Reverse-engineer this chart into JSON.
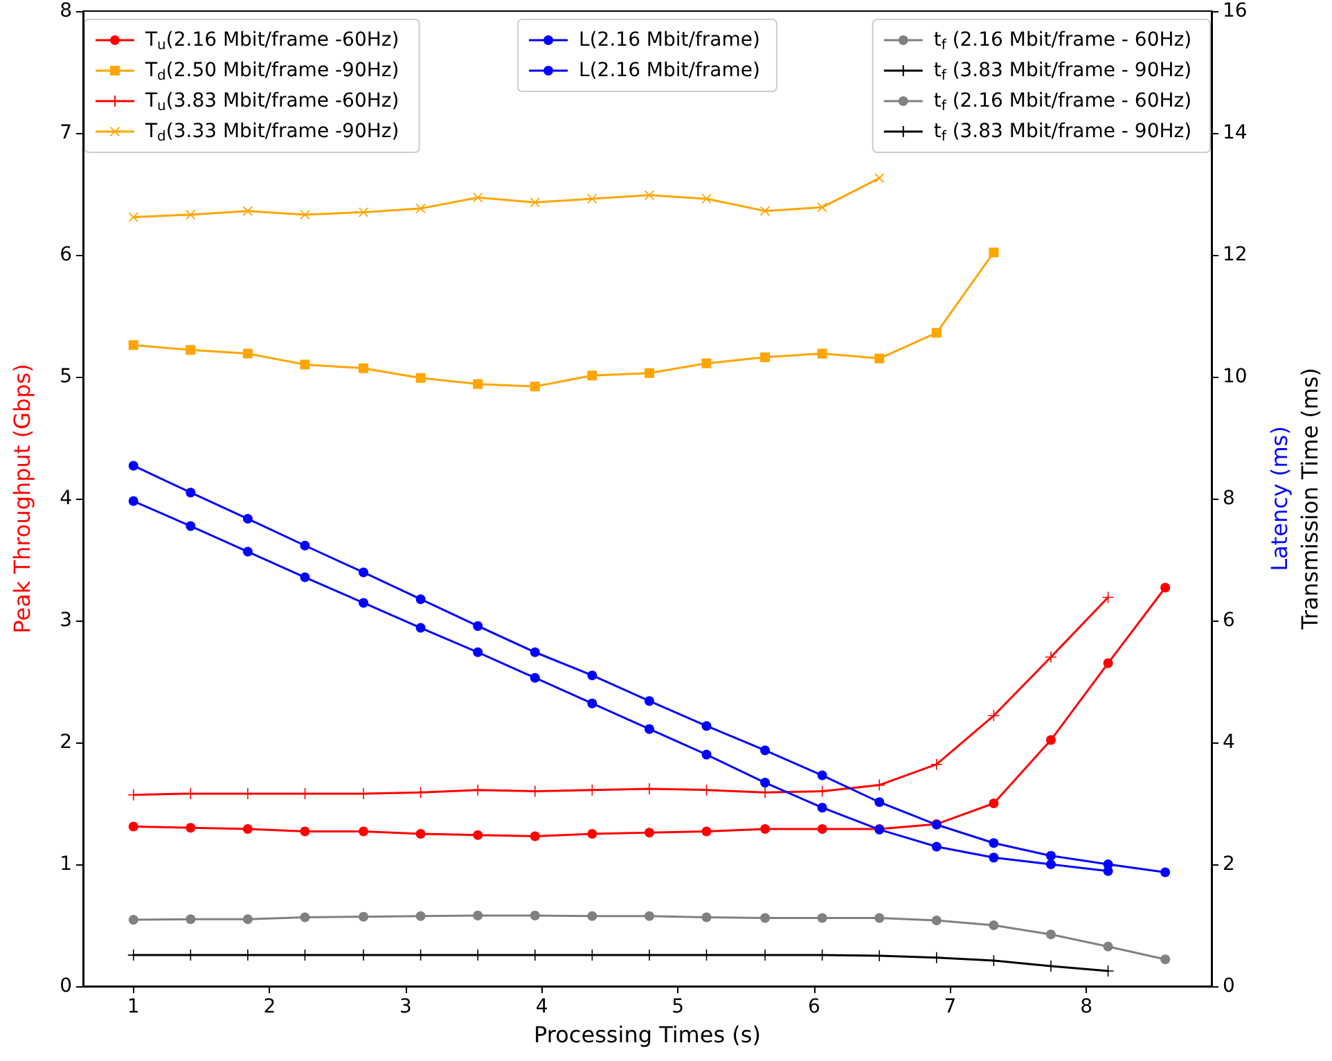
{
  "chart_data": {
    "type": "line",
    "xlabel": "Processing Times (s)",
    "ylabel": "Peak Throughput (Gbps)",
    "y2label": "Latency (ms)\nTransmission Time (ms)",
    "x": [
      1,
      1.42,
      1.84,
      2.26,
      2.69,
      3.11,
      3.53,
      3.95,
      4.37,
      4.79,
      5.21,
      5.64,
      6.06,
      6.48,
      6.9,
      7.32,
      7.74,
      8.16,
      8.58
    ],
    "xlim": [
      0.63,
      8.92
    ],
    "xticks": [
      1,
      2,
      3,
      4,
      5,
      6,
      7,
      8
    ],
    "ylim": [
      0,
      8
    ],
    "yticks": [
      0,
      1,
      2,
      3,
      4,
      5,
      6,
      7,
      8
    ],
    "y2lim": [
      0,
      16
    ],
    "y2ticks": [
      0,
      2,
      4,
      6,
      8,
      10,
      12,
      14,
      16
    ],
    "legend": "top",
    "grid": false,
    "series": [
      {
        "name": "T$_{u}$(2.16 Mbit/frame -60Hz)",
        "color": "#ff0000",
        "marker": "circle",
        "values": [
          1.31,
          1.3,
          1.29,
          1.27,
          1.27,
          1.25,
          1.24,
          1.23,
          1.25,
          1.26,
          1.27,
          1.29,
          1.29,
          1.29,
          1.33,
          1.5,
          2.02,
          2.65,
          3.27
        ]
      },
      {
        "name": "T$_{d}$(2.50 Mbit/frame -90Hz)",
        "color": "#ffa500",
        "marker": "square",
        "values": [
          5.26,
          5.22,
          5.19,
          5.1,
          5.07,
          4.99,
          4.94,
          4.92,
          5.01,
          5.03,
          5.11,
          5.16,
          5.19,
          5.15,
          5.36,
          6.02,
          null,
          null,
          null
        ]
      },
      {
        "name": "T$_{u}$(3.83 Mbit/frame -60Hz)",
        "color": "#ff0000",
        "marker": "plus",
        "values": [
          1.57,
          1.58,
          1.58,
          1.58,
          1.58,
          1.59,
          1.61,
          1.6,
          1.61,
          1.62,
          1.61,
          1.59,
          1.6,
          1.65,
          1.82,
          2.22,
          2.7,
          3.19,
          null
        ]
      },
      {
        "name": "T$_{d}$(3.33 Mbit/frame -90Hz)",
        "color": "#ffa500",
        "marker": "cross",
        "values": [
          6.31,
          6.33,
          6.36,
          6.33,
          6.35,
          6.38,
          6.47,
          6.43,
          6.46,
          6.49,
          6.46,
          6.36,
          6.39,
          6.63,
          null,
          null,
          null,
          null,
          null
        ]
      },
      {
        "name": "L(2.16 Mbit/frame)",
        "color": "#0000ff",
        "marker": "circle",
        "axis": "y2",
        "values": [
          8.54,
          8.1,
          7.67,
          7.23,
          6.79,
          6.35,
          5.91,
          5.48,
          5.1,
          4.68,
          4.27,
          3.87,
          3.46,
          3.02,
          2.65,
          2.35,
          2.14,
          2.0,
          1.87
        ]
      },
      {
        "name": "L(2.16 Mbit/frame)",
        "color": "#0000ff",
        "marker": "circle",
        "axis": "y2",
        "values": [
          7.96,
          7.55,
          7.13,
          6.71,
          6.29,
          5.88,
          5.48,
          5.06,
          4.64,
          4.22,
          3.8,
          3.34,
          2.93,
          2.57,
          2.29,
          2.11,
          2.0,
          1.89,
          null
        ]
      },
      {
        "name": "t$_{f}$ (2.16 Mbit/frame - 60Hz)",
        "color": "#808080",
        "marker": "circle",
        "axis": "y2",
        "values": [
          1.09,
          1.1,
          1.1,
          1.13,
          1.14,
          1.15,
          1.16,
          1.16,
          1.15,
          1.15,
          1.13,
          1.12,
          1.12,
          1.12,
          1.08,
          1.0,
          0.85,
          0.65,
          0.44
        ]
      },
      {
        "name": "t$_{f}$ (3.83 Mbit/frame - 90Hz)",
        "color": "#000000",
        "marker": "plus",
        "axis": "y2",
        "values": [
          0.51,
          0.51,
          0.51,
          0.51,
          0.51,
          0.51,
          0.51,
          0.51,
          0.51,
          0.51,
          0.51,
          0.51,
          0.51,
          0.5,
          0.47,
          0.42,
          0.33,
          0.25,
          null
        ]
      },
      {
        "name": "t$_{f}$ (2.16 Mbit/frame - 60Hz)",
        "color": "#808080",
        "marker": "circle",
        "axis": "y2",
        "values": [
          null,
          null,
          null,
          null,
          null,
          null,
          null,
          null,
          null,
          null,
          null,
          null,
          null,
          null,
          null,
          null,
          null,
          null,
          null
        ]
      },
      {
        "name": "t$_{f}$ (3.83 Mbit/frame - 90Hz)",
        "color": "#000000",
        "marker": "plus",
        "axis": "y2",
        "values": [
          null,
          null,
          null,
          null,
          null,
          null,
          null,
          null,
          null,
          null,
          null,
          null,
          null,
          null,
          null,
          null,
          null,
          null,
          null
        ]
      }
    ]
  }
}
